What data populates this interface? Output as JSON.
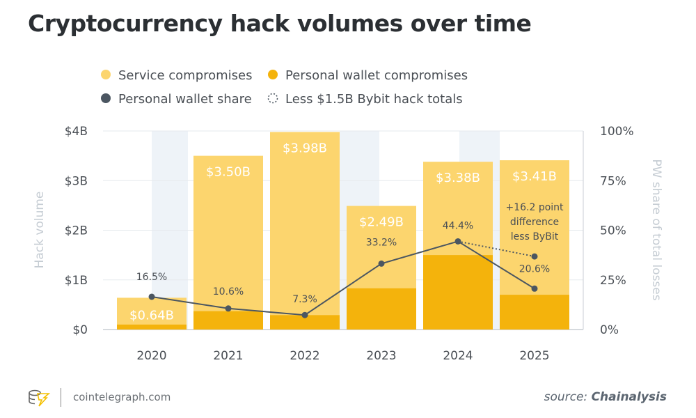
{
  "title": "Cryptocurrency hack volumes over time",
  "footer": {
    "site": "cointelegraph.com",
    "source_prefix": "source:",
    "source_name": "Chainalysis"
  },
  "colors": {
    "service": "#fcd56e",
    "personal": "#f4b30c",
    "share_line": "#4b5661",
    "band": "#eef3f8",
    "axis_text": "#4a4f55",
    "axis_label": "#c5ccd3"
  },
  "chart_data": {
    "type": "bar",
    "categories": [
      "2020",
      "2021",
      "2022",
      "2023",
      "2024",
      "2025"
    ],
    "series": [
      {
        "name": "Service compromises",
        "type": "stacked-bar",
        "values": [
          0.54,
          3.13,
          3.69,
          1.66,
          1.88,
          2.71
        ]
      },
      {
        "name": "Personal wallet compromises",
        "type": "stacked-bar",
        "values": [
          0.1,
          0.37,
          0.29,
          0.83,
          1.5,
          0.7
        ]
      },
      {
        "name": "Personal wallet share",
        "type": "line",
        "axis": "right",
        "values": [
          16.5,
          10.6,
          7.3,
          33.2,
          44.4,
          20.6
        ]
      },
      {
        "name": "Less $1.5B Bybit hack totals",
        "type": "dotted-line",
        "axis": "right",
        "x": [
          "2024",
          "2025"
        ],
        "values": [
          44.4,
          36.8
        ]
      }
    ],
    "totals": [
      0.64,
      3.5,
      3.98,
      2.49,
      3.38,
      3.41
    ],
    "total_labels": [
      "$0.64B",
      "$3.50B",
      "$3.98B",
      "$2.49B",
      "$3.38B",
      "$3.41B"
    ],
    "share_labels": [
      "16.5%",
      "10.6%",
      "7.3%",
      "33.2%",
      "44.4%",
      "20.6%"
    ],
    "annotation": [
      "+16.2 point",
      "difference",
      "less ByBit"
    ],
    "ylabel": "Hack volume",
    "ylabel_right": "PW share of total losses",
    "ylim": [
      0,
      4
    ],
    "ylim_right": [
      0,
      100
    ],
    "yticks": [
      "$0",
      "$1B",
      "$2B",
      "$3B",
      "$4B"
    ],
    "yticks_right": [
      "0%",
      "25%",
      "50%",
      "75%",
      "100%"
    ],
    "legend": {
      "placement": "top-left",
      "entries": [
        "Service compromises",
        "Personal wallet compromises",
        "Personal wallet share",
        "Less $1.5B Bybit hack totals"
      ]
    },
    "grid": true
  }
}
